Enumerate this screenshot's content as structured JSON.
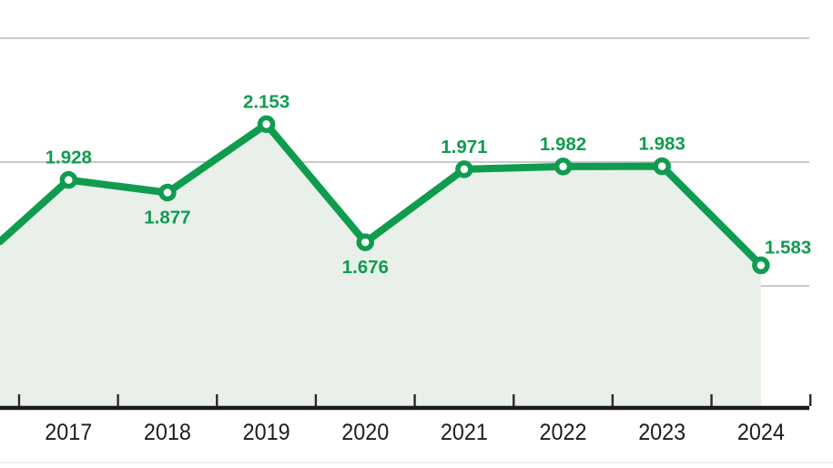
{
  "chart_data": {
    "type": "line",
    "title": "",
    "xlabel": "",
    "ylabel": "",
    "categories": [
      "2017",
      "2018",
      "2019",
      "2020",
      "2021",
      "2022",
      "2023",
      "2024"
    ],
    "series": [
      {
        "name": "annual-values",
        "values": [
          1928,
          1877,
          2153,
          1676,
          1971,
          1982,
          1983,
          1583
        ]
      }
    ],
    "point_labels": [
      "1.928",
      "1.877",
      "2.153",
      "1.676",
      "1.971",
      "1.982",
      "1.983",
      "1.583"
    ],
    "label_positions": [
      "above",
      "below",
      "above",
      "below",
      "above",
      "above",
      "above",
      "right"
    ],
    "left_edge_entry_value": 1679,
    "gridline_values": [
      1500,
      2000,
      2500
    ],
    "ylim": [
      1000,
      2640
    ],
    "grid": "horizontal-only",
    "legend_position": "none",
    "area_fill": true,
    "markers": "ring",
    "x_axis_tick_style": "boundary-ticks"
  },
  "colors": {
    "line_green": "#0f9c4e",
    "label_green": "#0f9c4e",
    "marker_fill": "#ffffff",
    "area_fill": "#e9f0ea",
    "gridline": "#b9b9b9",
    "axis": "#1a1a1a",
    "tick": "#2a2a2a",
    "year_label": "#1d1d1b",
    "bottom_rule": "#ececec",
    "background": "#ffffff"
  }
}
